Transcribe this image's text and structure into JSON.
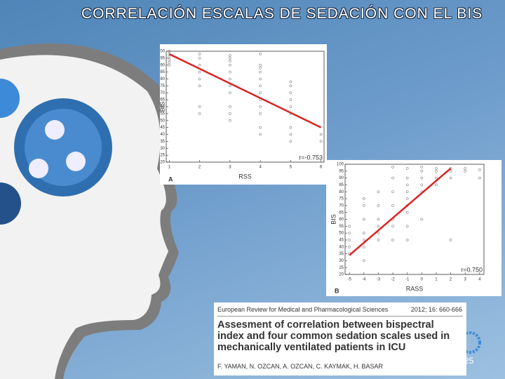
{
  "slide": {
    "title": "CORRELACIÓN ESCALAS DE SEDACIÓN CON EL BIS",
    "page_number": "25"
  },
  "citation": {
    "journal": "European Review for Medical and Pharmacological Sciences",
    "issue": "2012; 16: 660-666",
    "title": "Assesment of correlation between bispectral index and four common sedation scales used in mechanically ventilated patients in ICU",
    "authors": "F. YAMAN, N. OZCAN, A. OZCAN, C. KAYMAK, H. BASAR"
  },
  "chart_data": [
    {
      "type": "scatter",
      "panel_label": "A",
      "xlabel": "RSS",
      "ylabel": "BIS",
      "annotation": "r=-0.753",
      "point_color": "#555555",
      "x": [
        1,
        1,
        1,
        1,
        1,
        1,
        2,
        2,
        2,
        2,
        2,
        2,
        2,
        2,
        3,
        3,
        3,
        3,
        3,
        3,
        3,
        3,
        3,
        3,
        3,
        4,
        4,
        4,
        4,
        4,
        4,
        4,
        4,
        4,
        4,
        4,
        4,
        5,
        5,
        5,
        5,
        5,
        5,
        5,
        5,
        5,
        6,
        6
      ],
      "y": [
        100,
        98,
        96,
        94,
        92,
        90,
        98,
        95,
        90,
        85,
        80,
        75,
        60,
        55,
        97,
        95,
        93,
        90,
        85,
        80,
        75,
        70,
        60,
        55,
        50,
        98,
        90,
        88,
        85,
        80,
        75,
        70,
        65,
        60,
        55,
        45,
        40,
        78,
        75,
        70,
        65,
        60,
        55,
        45,
        40,
        35,
        40,
        35
      ],
      "fit": {
        "x": [
          1,
          6
        ],
        "y": [
          98,
          45
        ],
        "color": "#dd2222"
      },
      "xlim": [
        0.9,
        6.1
      ],
      "ylim": [
        20,
        100
      ],
      "xticks": [
        1,
        2,
        3,
        4,
        5,
        6
      ],
      "yticks": [
        20,
        25,
        30,
        35,
        40,
        45,
        50,
        55,
        60,
        65,
        70,
        75,
        80,
        85,
        90,
        95,
        100
      ]
    },
    {
      "type": "scatter",
      "panel_label": "B",
      "xlabel": "RASS",
      "ylabel": "BIS",
      "annotation": "r=0.750",
      "point_color": "#555555",
      "x": [
        -5,
        -5,
        -5,
        -5,
        -5,
        -4,
        -4,
        -4,
        -4,
        -4,
        -4,
        -4,
        -3,
        -3,
        -3,
        -3,
        -3,
        -3,
        -2,
        -2,
        -2,
        -2,
        -2,
        -2,
        -2,
        -1,
        -1,
        -1,
        -1,
        -1,
        -1,
        -1,
        -1,
        -1,
        0,
        0,
        0,
        0,
        0,
        0,
        1,
        1,
        1,
        1,
        2,
        2,
        2,
        2,
        3,
        3,
        4,
        4
      ],
      "y": [
        55,
        50,
        45,
        40,
        35,
        75,
        70,
        60,
        50,
        45,
        40,
        30,
        80,
        70,
        60,
        55,
        50,
        45,
        98,
        90,
        80,
        70,
        60,
        55,
        45,
        97,
        90,
        85,
        80,
        75,
        70,
        65,
        55,
        45,
        98,
        95,
        90,
        85,
        80,
        60,
        97,
        95,
        90,
        85,
        97,
        95,
        90,
        45,
        97,
        95,
        96,
        90
      ],
      "fit": {
        "x": [
          -5,
          2
        ],
        "y": [
          34,
          97
        ],
        "color": "#dd2222"
      },
      "xlim": [
        -5.3,
        4.3
      ],
      "ylim": [
        20,
        100
      ],
      "xticks": [
        -5,
        -4,
        -3,
        -2,
        -1,
        0,
        1,
        2,
        3,
        4
      ],
      "yticks": [
        20,
        25,
        30,
        35,
        40,
        45,
        50,
        55,
        60,
        65,
        70,
        75,
        80,
        85,
        90,
        95,
        100
      ]
    }
  ]
}
